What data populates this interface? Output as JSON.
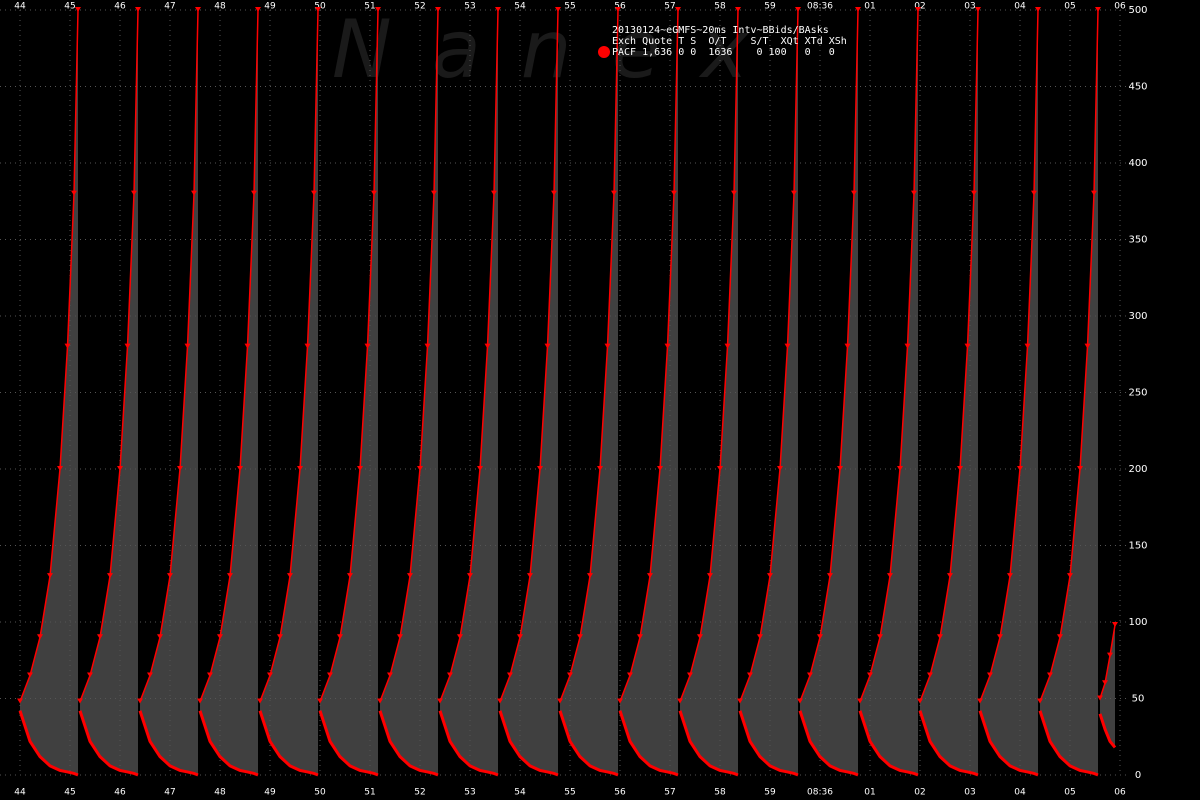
{
  "chart_data": {
    "type": "line",
    "annotations": [
      "20130124~eGMFS~20ms Intv~BBids/BAsks",
      "Exch Quote T S  O/T    S/T  XQt XTd XSh",
      "PACF 1,636 0 0  1636    0 100   0   0"
    ],
    "watermark": "Nanex",
    "legend_color": "#ff0000",
    "x": [
      44,
      44.2,
      44.4,
      44.6,
      44.8,
      44.95,
      45.08,
      45.16,
      45.18,
      45.2,
      45.4,
      45.6,
      45.8,
      46,
      46.15,
      46.28,
      46.36,
      46.38,
      46.4,
      46.6,
      46.8,
      47,
      47.2,
      47.35,
      47.48,
      47.56,
      47.58,
      47.6,
      47.8,
      48,
      48.2,
      48.4,
      48.55,
      48.68,
      48.76,
      48.78,
      48.8,
      49,
      49.2,
      49.4,
      49.6,
      49.75,
      49.88,
      49.96,
      49.98,
      50,
      50.2,
      50.4,
      50.6,
      50.8,
      50.95,
      51.08,
      51.16,
      51.18,
      51.2,
      51.4,
      51.6,
      51.8,
      52,
      52.15,
      52.28,
      52.36,
      52.38,
      52.4,
      52.6,
      52.8,
      53,
      53.2,
      53.35,
      53.48,
      53.56,
      53.58,
      53.6,
      53.8,
      54,
      54.2,
      54.4,
      54.55,
      54.68,
      54.76,
      54.78,
      54.8,
      55,
      55.2,
      55.4,
      55.6,
      55.75,
      55.88,
      55.96,
      55.98,
      56,
      56.2,
      56.4,
      56.6,
      56.8,
      56.95,
      57.08,
      57.16,
      57.18,
      57.2,
      57.4,
      57.6,
      57.8,
      58,
      58.15,
      58.28,
      58.36,
      58.38,
      58.4,
      58.6,
      58.8,
      59,
      59.2,
      59.35,
      59.48,
      59.56,
      59.58,
      59.6,
      59.8,
      60,
      60.2,
      60.4,
      60.55,
      60.68,
      60.76,
      60.78,
      60.8,
      61,
      61.2,
      61.4,
      61.6,
      61.75,
      61.88,
      61.96,
      61.98,
      62,
      62.2,
      62.4,
      62.6,
      62.8,
      62.95,
      63.08,
      63.16,
      63.18,
      63.2,
      63.4,
      63.6,
      63.8,
      64,
      64.15,
      64.28,
      64.36,
      64.38,
      64.4,
      64.6,
      64.8,
      65,
      65.2,
      65.35,
      65.48,
      65.56,
      65.58,
      65.6,
      65.7,
      65.8,
      65.9
    ],
    "series": [
      {
        "color": "#ff0000",
        "values": [
          48,
          65,
          90,
          130,
          200,
          280,
          380,
          500,
          null,
          48,
          65,
          90,
          130,
          200,
          280,
          380,
          500,
          null,
          48,
          65,
          90,
          130,
          200,
          280,
          380,
          500,
          null,
          48,
          65,
          90,
          130,
          200,
          280,
          380,
          500,
          null,
          48,
          65,
          90,
          130,
          200,
          280,
          380,
          500,
          null,
          48,
          65,
          90,
          130,
          200,
          280,
          380,
          500,
          null,
          48,
          65,
          90,
          130,
          200,
          280,
          380,
          500,
          null,
          48,
          65,
          90,
          130,
          200,
          280,
          380,
          500,
          null,
          48,
          65,
          90,
          130,
          200,
          280,
          380,
          500,
          null,
          48,
          65,
          90,
          130,
          200,
          280,
          380,
          500,
          null,
          48,
          65,
          90,
          130,
          200,
          280,
          380,
          500,
          null,
          48,
          65,
          90,
          130,
          200,
          280,
          380,
          500,
          null,
          48,
          65,
          90,
          130,
          200,
          280,
          380,
          500,
          null,
          48,
          65,
          90,
          130,
          200,
          280,
          380,
          500,
          null,
          48,
          65,
          90,
          130,
          200,
          280,
          380,
          500,
          null,
          48,
          65,
          90,
          130,
          200,
          280,
          380,
          500,
          null,
          48,
          65,
          90,
          130,
          200,
          280,
          380,
          500,
          null,
          48,
          65,
          90,
          130,
          200,
          280,
          380,
          500,
          null,
          50,
          60,
          78,
          98
        ]
      },
      {
        "color": "#ff0000",
        "values": [
          42,
          22,
          12,
          6,
          3,
          2,
          1,
          0,
          null,
          42,
          22,
          12,
          6,
          3,
          2,
          1,
          0,
          null,
          42,
          22,
          12,
          6,
          3,
          2,
          1,
          0,
          null,
          42,
          22,
          12,
          6,
          3,
          2,
          1,
          0,
          null,
          42,
          22,
          12,
          6,
          3,
          2,
          1,
          0,
          null,
          42,
          22,
          12,
          6,
          3,
          2,
          1,
          0,
          null,
          42,
          22,
          12,
          6,
          3,
          2,
          1,
          0,
          null,
          42,
          22,
          12,
          6,
          3,
          2,
          1,
          0,
          null,
          42,
          22,
          12,
          6,
          3,
          2,
          1,
          0,
          null,
          42,
          22,
          12,
          6,
          3,
          2,
          1,
          0,
          null,
          42,
          22,
          12,
          6,
          3,
          2,
          1,
          0,
          null,
          42,
          22,
          12,
          6,
          3,
          2,
          1,
          0,
          null,
          42,
          22,
          12,
          6,
          3,
          2,
          1,
          0,
          null,
          42,
          22,
          12,
          6,
          3,
          2,
          1,
          0,
          null,
          42,
          22,
          12,
          6,
          3,
          2,
          1,
          0,
          null,
          42,
          22,
          12,
          6,
          3,
          2,
          1,
          0,
          null,
          42,
          22,
          12,
          6,
          3,
          2,
          1,
          0,
          null,
          42,
          22,
          12,
          6,
          3,
          2,
          1,
          0,
          null,
          40,
          30,
          22,
          18
        ]
      }
    ],
    "fill_color": "#404040",
    "xlim": [
      43.6,
      66.2
    ],
    "xticks": [
      44,
      45,
      46,
      47,
      48,
      49,
      50,
      51,
      52,
      53,
      54,
      55,
      56,
      57,
      58,
      59,
      {
        "value": 60,
        "label": "08:36"
      },
      {
        "value": 61,
        "label": "01"
      },
      {
        "value": 62,
        "label": "02"
      },
      {
        "value": 63,
        "label": "03"
      },
      {
        "value": 64,
        "label": "04"
      },
      {
        "value": 65,
        "label": "05"
      },
      {
        "value": 66,
        "label": "06"
      }
    ],
    "ylim": [
      0,
      500
    ],
    "yticks": [
      0,
      50,
      100,
      150,
      200,
      250,
      300,
      350,
      400,
      450,
      500
    ],
    "grid": true
  }
}
